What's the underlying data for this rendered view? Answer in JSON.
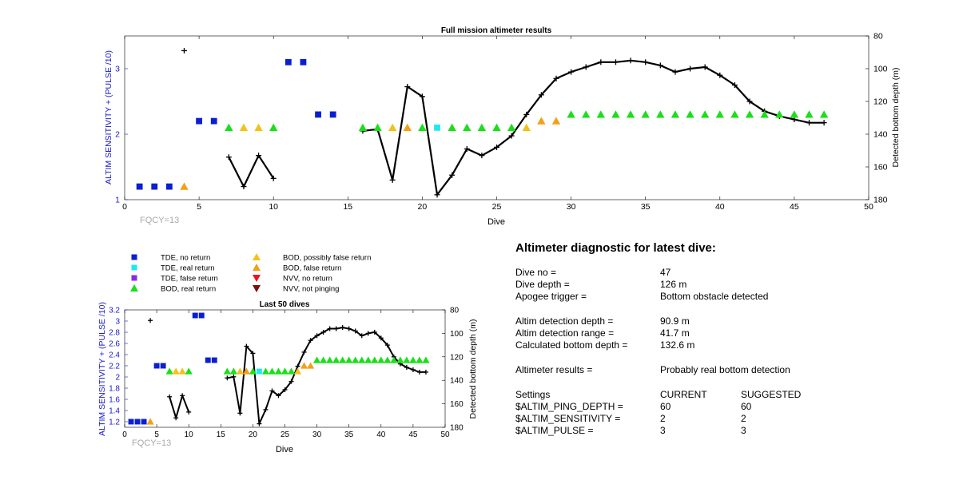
{
  "colors": {
    "tde_no_return": "#0a1fd1",
    "tde_real_return": "#1ee8f0",
    "tde_false_return": "#8a2be2",
    "bod_real_return": "#19e019",
    "bod_possibly_false": "#f2c21a",
    "bod_false_return": "#f2a01a",
    "nvv_no_return": "#e8141e",
    "nvv_not_pinging": "#7a1010",
    "left_axis": "#1a1acc",
    "fqcy": "#a8a8a8",
    "depth_line": "#000000"
  },
  "legend": {
    "items": [
      {
        "label": "TDE, no return",
        "symbol": "square",
        "color": "#0a1fd1"
      },
      {
        "label": "TDE, real return",
        "symbol": "square",
        "color": "#1ee8f0"
      },
      {
        "label": "TDE, false return",
        "symbol": "square",
        "color": "#8a2be2"
      },
      {
        "label": "BOD, real return",
        "symbol": "triangle-up",
        "color": "#19e019"
      },
      {
        "label": "BOD, possibly false return",
        "symbol": "triangle-up",
        "color": "#f2c21a"
      },
      {
        "label": "BOD, false return",
        "symbol": "triangle-up",
        "color": "#f2a01a"
      },
      {
        "label": "NVV, no return",
        "symbol": "triangle-down",
        "color": "#e8141e"
      },
      {
        "label": "NVV, not pinging",
        "symbol": "triangle-down",
        "color": "#7a1010"
      }
    ]
  },
  "chart_data": [
    {
      "type": "scatter",
      "title": "Full mission altimeter results",
      "xlabel": "Dive",
      "ylabel": "ALTIM SENSITIVITY + (PULSE /10)",
      "y2label": "Detected bottom depth (m)",
      "annotation": "FQCY=13",
      "xlim": [
        0,
        50
      ],
      "ylim": [
        1,
        3.5
      ],
      "y2lim": [
        80,
        180
      ],
      "y2_reversed": true,
      "xticks": [
        0,
        5,
        10,
        15,
        20,
        25,
        30,
        35,
        40,
        45,
        50
      ],
      "yticks": [
        1,
        2,
        3
      ],
      "y2ticks": [
        80,
        100,
        120,
        140,
        160,
        180
      ],
      "grid": false
    },
    {
      "type": "scatter",
      "title": "Last 50 dives",
      "xlabel": "Dive",
      "ylabel": "ALTIM SENSITIVITY + (PULSE /10)",
      "y2label": "Detected bottom depth (m)",
      "annotation": "FQCY=13",
      "xlim": [
        0,
        50
      ],
      "ylim": [
        1.1,
        3.2
      ],
      "y2lim": [
        80,
        180
      ],
      "y2_reversed": true,
      "xticks": [
        0,
        5,
        10,
        15,
        20,
        25,
        30,
        35,
        40,
        45,
        50
      ],
      "yticks": [
        1.2,
        1.4,
        1.6,
        1.8,
        2,
        2.2,
        2.4,
        2.6,
        2.8,
        3,
        3.2
      ],
      "y2ticks": [
        80,
        100,
        120,
        140,
        160,
        180
      ],
      "grid": false
    }
  ],
  "series": {
    "status_points": [
      {
        "dive": 1,
        "value": 1.2,
        "cat": "tde_no_return"
      },
      {
        "dive": 2,
        "value": 1.2,
        "cat": "tde_no_return"
      },
      {
        "dive": 3,
        "value": 1.2,
        "cat": "tde_no_return"
      },
      {
        "dive": 4,
        "value": 1.2,
        "cat": "bod_false_return"
      },
      {
        "dive": 5,
        "value": 2.2,
        "cat": "tde_no_return"
      },
      {
        "dive": 6,
        "value": 2.2,
        "cat": "tde_no_return"
      },
      {
        "dive": 7,
        "value": 2.1,
        "cat": "bod_real_return"
      },
      {
        "dive": 8,
        "value": 2.1,
        "cat": "bod_possibly_false"
      },
      {
        "dive": 9,
        "value": 2.1,
        "cat": "bod_possibly_false"
      },
      {
        "dive": 10,
        "value": 2.1,
        "cat": "bod_real_return"
      },
      {
        "dive": 11,
        "value": 3.1,
        "cat": "tde_no_return"
      },
      {
        "dive": 12,
        "value": 3.1,
        "cat": "tde_no_return"
      },
      {
        "dive": 13,
        "value": 2.3,
        "cat": "tde_no_return"
      },
      {
        "dive": 14,
        "value": 2.3,
        "cat": "tde_no_return"
      },
      {
        "dive": 16,
        "value": 2.1,
        "cat": "bod_real_return"
      },
      {
        "dive": 17,
        "value": 2.1,
        "cat": "bod_real_return"
      },
      {
        "dive": 18,
        "value": 2.1,
        "cat": "bod_possibly_false"
      },
      {
        "dive": 19,
        "value": 2.1,
        "cat": "bod_false_return"
      },
      {
        "dive": 20,
        "value": 2.1,
        "cat": "bod_real_return"
      },
      {
        "dive": 21,
        "value": 2.1,
        "cat": "tde_real_return"
      },
      {
        "dive": 22,
        "value": 2.1,
        "cat": "bod_real_return"
      },
      {
        "dive": 23,
        "value": 2.1,
        "cat": "bod_real_return"
      },
      {
        "dive": 24,
        "value": 2.1,
        "cat": "bod_real_return"
      },
      {
        "dive": 25,
        "value": 2.1,
        "cat": "bod_real_return"
      },
      {
        "dive": 26,
        "value": 2.1,
        "cat": "bod_real_return"
      },
      {
        "dive": 27,
        "value": 2.1,
        "cat": "bod_possibly_false"
      },
      {
        "dive": 28,
        "value": 2.2,
        "cat": "bod_false_return"
      },
      {
        "dive": 29,
        "value": 2.2,
        "cat": "bod_false_return"
      },
      {
        "dive": 30,
        "value": 2.3,
        "cat": "bod_real_return"
      },
      {
        "dive": 31,
        "value": 2.3,
        "cat": "bod_real_return"
      },
      {
        "dive": 32,
        "value": 2.3,
        "cat": "bod_real_return"
      },
      {
        "dive": 33,
        "value": 2.3,
        "cat": "bod_real_return"
      },
      {
        "dive": 34,
        "value": 2.3,
        "cat": "bod_real_return"
      },
      {
        "dive": 35,
        "value": 2.3,
        "cat": "bod_real_return"
      },
      {
        "dive": 36,
        "value": 2.3,
        "cat": "bod_real_return"
      },
      {
        "dive": 37,
        "value": 2.3,
        "cat": "bod_real_return"
      },
      {
        "dive": 38,
        "value": 2.3,
        "cat": "bod_real_return"
      },
      {
        "dive": 39,
        "value": 2.3,
        "cat": "bod_real_return"
      },
      {
        "dive": 40,
        "value": 2.3,
        "cat": "bod_real_return"
      },
      {
        "dive": 41,
        "value": 2.3,
        "cat": "bod_real_return"
      },
      {
        "dive": 42,
        "value": 2.3,
        "cat": "bod_real_return"
      },
      {
        "dive": 43,
        "value": 2.3,
        "cat": "bod_real_return"
      },
      {
        "dive": 44,
        "value": 2.3,
        "cat": "bod_real_return"
      },
      {
        "dive": 45,
        "value": 2.3,
        "cat": "bod_real_return"
      },
      {
        "dive": 46,
        "value": 2.3,
        "cat": "bod_real_return"
      },
      {
        "dive": 47,
        "value": 2.3,
        "cat": "bod_real_return"
      }
    ],
    "depth_isolated": [
      {
        "dive": 4,
        "depth": 89
      }
    ],
    "depth_segments": [
      [
        {
          "dive": 7,
          "depth": 154
        },
        {
          "dive": 8,
          "depth": 172
        },
        {
          "dive": 9,
          "depth": 153
        },
        {
          "dive": 10,
          "depth": 167
        }
      ],
      [
        {
          "dive": 16,
          "depth": 138
        },
        {
          "dive": 17,
          "depth": 137
        },
        {
          "dive": 18,
          "depth": 168
        },
        {
          "dive": 19,
          "depth": 111
        },
        {
          "dive": 20,
          "depth": 117
        },
        {
          "dive": 21,
          "depth": 177
        },
        {
          "dive": 22,
          "depth": 165
        },
        {
          "dive": 23,
          "depth": 149
        },
        {
          "dive": 24,
          "depth": 153
        },
        {
          "dive": 25,
          "depth": 148
        },
        {
          "dive": 26,
          "depth": 141
        },
        {
          "dive": 27,
          "depth": 128
        },
        {
          "dive": 28,
          "depth": 116
        },
        {
          "dive": 29,
          "depth": 106
        },
        {
          "dive": 30,
          "depth": 102
        },
        {
          "dive": 31,
          "depth": 99
        },
        {
          "dive": 32,
          "depth": 96
        },
        {
          "dive": 33,
          "depth": 96
        },
        {
          "dive": 34,
          "depth": 95
        },
        {
          "dive": 35,
          "depth": 96
        },
        {
          "dive": 36,
          "depth": 98
        },
        {
          "dive": 37,
          "depth": 102
        },
        {
          "dive": 38,
          "depth": 100
        },
        {
          "dive": 39,
          "depth": 99
        },
        {
          "dive": 40,
          "depth": 104
        },
        {
          "dive": 41,
          "depth": 110
        },
        {
          "dive": 42,
          "depth": 120
        },
        {
          "dive": 43,
          "depth": 126
        },
        {
          "dive": 44,
          "depth": 129
        },
        {
          "dive": 45,
          "depth": 131
        },
        {
          "dive": 46,
          "depth": 133
        },
        {
          "dive": 47,
          "depth": 133
        }
      ]
    ]
  },
  "diagnostic": {
    "title": "Altimeter diagnostic for latest dive:",
    "rows": [
      {
        "label": "Dive no =",
        "value": "47"
      },
      {
        "label": "Dive depth =",
        "value": "126 m"
      },
      {
        "label": "Apogee trigger =",
        "value": "Bottom obstacle detected"
      },
      {
        "label": "Altim detection depth =",
        "value": "90.9 m"
      },
      {
        "label": "Altim detection range =",
        "value": "41.7 m"
      },
      {
        "label": "Calculated bottom depth =",
        "value": "132.6 m"
      },
      {
        "label": "Altimeter results =",
        "value": "Probably real bottom detection"
      }
    ],
    "settings_header": {
      "label": "Settings",
      "current": "CURRENT",
      "suggested": "SUGGESTED"
    },
    "settings": [
      {
        "label": "$ALTIM_PING_DEPTH =",
        "current": "60",
        "suggested": "60"
      },
      {
        "label": "$ALTIM_SENSITIVITY =",
        "current": "2",
        "suggested": "2"
      },
      {
        "label": "$ALTIM_PULSE =",
        "current": "3",
        "suggested": "3"
      }
    ]
  }
}
